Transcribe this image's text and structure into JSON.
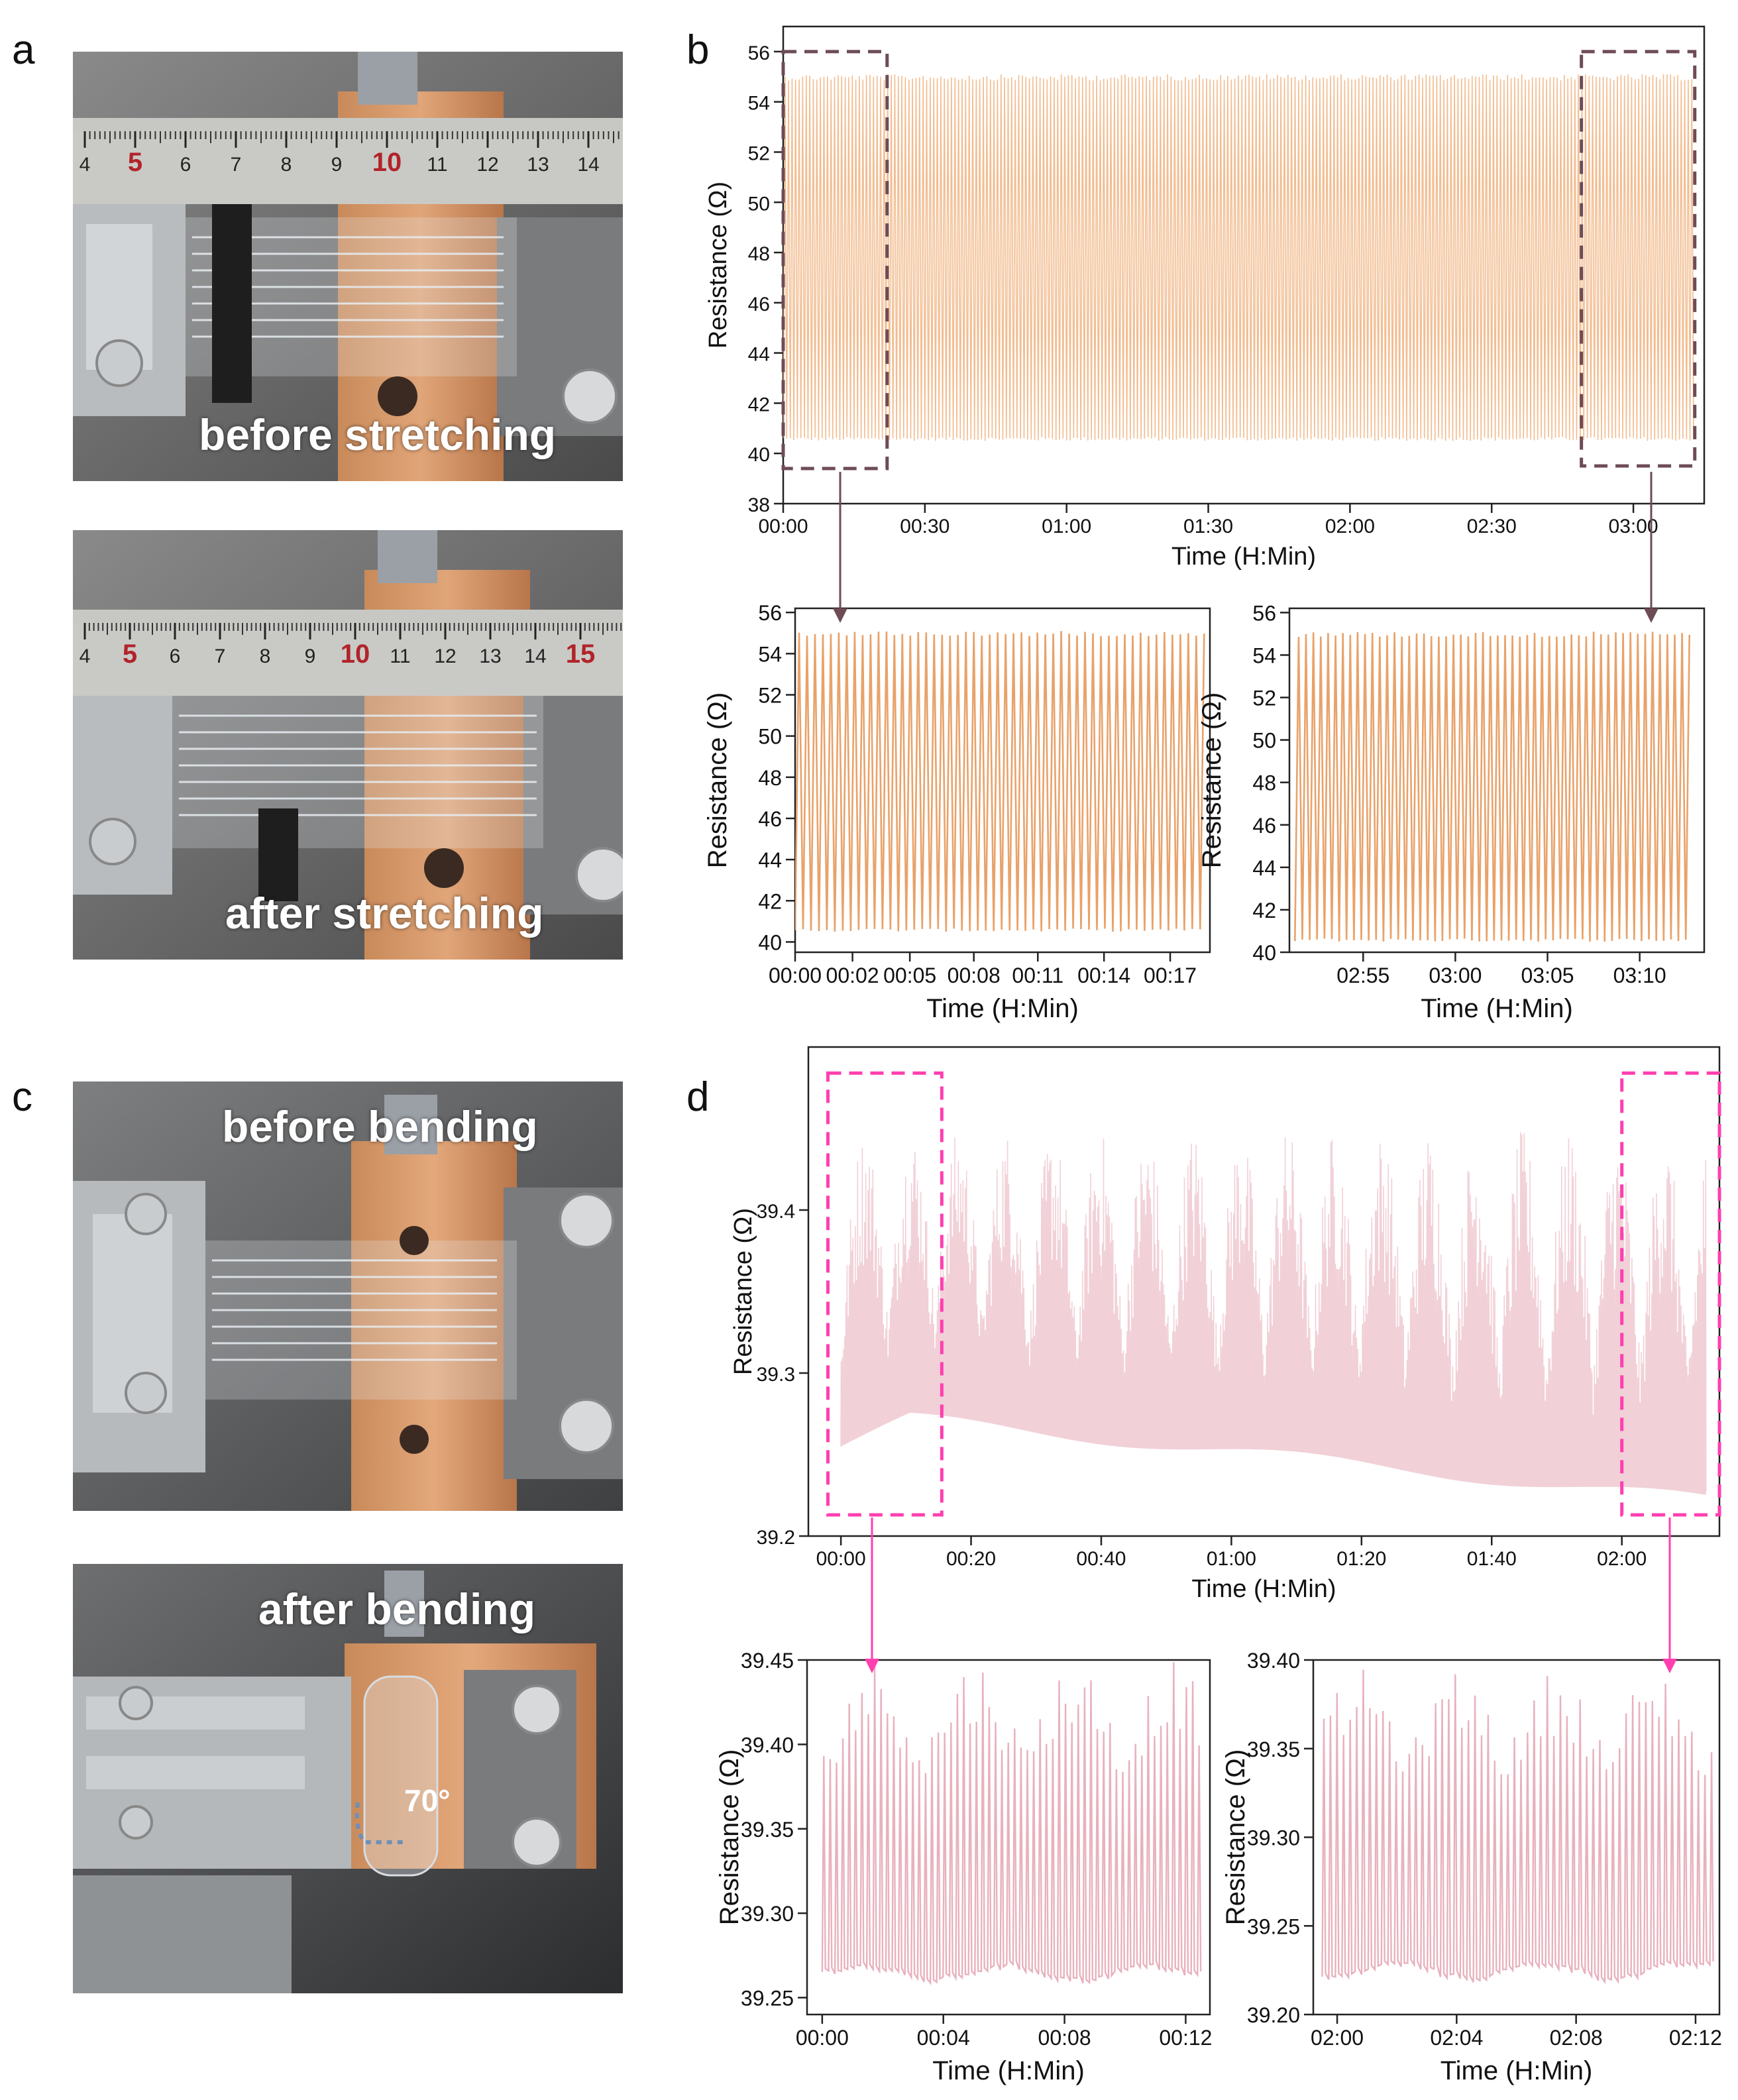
{
  "panel_labels": {
    "a": "a",
    "b": "b",
    "c": "c",
    "d": "d"
  },
  "photos": {
    "before_stretching": {
      "caption": "before stretching"
    },
    "after_stretching": {
      "caption": "after stretching"
    },
    "before_bending": {
      "caption": "before bending"
    },
    "after_bending": {
      "caption": "after bending",
      "angle_label": "70°"
    }
  },
  "ruler": {
    "ticks_top": [
      "4",
      "5",
      "6",
      "7",
      "8",
      "9",
      "10",
      "11",
      "12",
      "13",
      "14"
    ],
    "ticks_bottom": [
      "4",
      "5",
      "6",
      "7",
      "8",
      "9",
      "10",
      "11",
      "12",
      "13",
      "14",
      "15"
    ]
  },
  "colors": {
    "orange": "#f0b27e",
    "orange_dark": "#e8a26a",
    "pink": "#e9b2bd",
    "pink_line": "#e6a9b6",
    "box_b": "#6e4c55",
    "box_d": "#ff3fb0",
    "arrow_b": "#6e4c55",
    "arrow_d": "#ff3fb0"
  },
  "chart_data": [
    {
      "id": "b-main",
      "type": "line",
      "xlabel": "Time (H:Min)",
      "ylabel": "Resistance (Ω)",
      "ylim": [
        38,
        57
      ],
      "yticks": [
        "38",
        "40",
        "42",
        "44",
        "46",
        "48",
        "50",
        "52",
        "54",
        "56"
      ],
      "xlim": [
        0,
        195
      ],
      "xticks": [
        {
          "v": 0,
          "t": "00:00"
        },
        {
          "v": 30,
          "t": "00:30"
        },
        {
          "v": 60,
          "t": "01:00"
        },
        {
          "v": 90,
          "t": "01:30"
        },
        {
          "v": 120,
          "t": "02:00"
        },
        {
          "v": 150,
          "t": "02:30"
        },
        {
          "v": 180,
          "t": "03:00"
        }
      ],
      "series": [
        {
          "min": 40.5,
          "max": 55.1,
          "x_start": 0,
          "x_end": 193,
          "period": 0.75
        }
      ],
      "zoom_boxes": [
        {
          "x": [
            0,
            22
          ],
          "y": [
            39.4,
            56.0
          ]
        },
        {
          "x": [
            169,
            193
          ],
          "y": [
            39.5,
            56.0
          ]
        }
      ]
    },
    {
      "id": "b-left",
      "type": "line",
      "xlabel": "Time (H:Min)",
      "ylabel": "Resistance (Ω)",
      "ylim": [
        39.5,
        56.2
      ],
      "yticks": [
        "40",
        "42",
        "44",
        "46",
        "48",
        "50",
        "52",
        "54",
        "56"
      ],
      "xlim": [
        0,
        18.8
      ],
      "xticks": [
        {
          "v": 0,
          "t": "00:00"
        },
        {
          "v": 2.6,
          "t": "00:02"
        },
        {
          "v": 5.2,
          "t": "00:05"
        },
        {
          "v": 8.1,
          "t": "00:08"
        },
        {
          "v": 11.0,
          "t": "00:11"
        },
        {
          "v": 14.0,
          "t": "00:14"
        },
        {
          "v": 17.0,
          "t": "00:17"
        }
      ],
      "series": [
        {
          "min": 40.5,
          "max": 55.1,
          "x_start": 0,
          "x_end": 18.6,
          "period": 0.36
        }
      ]
    },
    {
      "id": "b-right",
      "type": "line",
      "xlabel": "Time (H:Min)",
      "ylabel": "Resistance (Ω)",
      "ylim": [
        40,
        56.2
      ],
      "yticks": [
        "40",
        "42",
        "44",
        "46",
        "48",
        "50",
        "52",
        "54",
        "56"
      ],
      "xlim": [
        171,
        193.5
      ],
      "xticks": [
        {
          "v": 175,
          "t": "02:55"
        },
        {
          "v": 180,
          "t": "03:00"
        },
        {
          "v": 185,
          "t": "03:05"
        },
        {
          "v": 190,
          "t": "03:10"
        }
      ],
      "series": [
        {
          "min": 40.5,
          "max": 55.1,
          "x_start": 171.3,
          "x_end": 192.8,
          "period": 0.4
        }
      ]
    },
    {
      "id": "d-main",
      "type": "line",
      "xlabel": "Time (H:Min)",
      "ylabel": "Resistance (Ω)",
      "ylim": [
        39.2,
        39.5
      ],
      "yticks": [
        {
          "v": 39.2,
          "t": "39.2"
        },
        {
          "v": 39.3,
          "t": "39.3"
        },
        {
          "v": 39.4,
          "t": "39.4"
        }
      ],
      "xlim": [
        -5,
        135
      ],
      "xticks": [
        {
          "v": 0,
          "t": "00:00"
        },
        {
          "v": 20,
          "t": "00:20"
        },
        {
          "v": 40,
          "t": "00:40"
        },
        {
          "v": 60,
          "t": "01:00"
        },
        {
          "v": 80,
          "t": "01:20"
        },
        {
          "v": 100,
          "t": "01:40"
        },
        {
          "v": 120,
          "t": "02:00"
        }
      ],
      "series": [
        {
          "baseline_start": 39.255,
          "baseline_peak": 39.272,
          "baseline_end": 39.222,
          "peak_max": 39.45,
          "x_start": 0,
          "x_end": 133
        }
      ],
      "zoom_boxes": [
        {
          "x": [
            -2,
            15.5
          ],
          "y": [
            39.213,
            39.484
          ]
        },
        {
          "x": [
            120,
            135
          ],
          "y": [
            39.213,
            39.484
          ]
        }
      ]
    },
    {
      "id": "d-left",
      "type": "line",
      "xlabel": "Time (H:Min)",
      "ylabel": "Resistance (Ω)",
      "ylim": [
        39.24,
        39.45
      ],
      "yticks": [
        {
          "v": 39.25,
          "t": "39.25"
        },
        {
          "v": 39.3,
          "t": "39.30"
        },
        {
          "v": 39.35,
          "t": "39.35"
        },
        {
          "v": 39.4,
          "t": "39.40"
        },
        {
          "v": 39.45,
          "t": "39.45"
        }
      ],
      "xlim": [
        -0.5,
        12.8
      ],
      "xticks": [
        {
          "v": 0,
          "t": "00:00"
        },
        {
          "v": 4,
          "t": "00:04"
        },
        {
          "v": 8,
          "t": "00:08"
        },
        {
          "v": 12,
          "t": "00:12"
        }
      ],
      "series": [
        {
          "baseline": 39.262,
          "peak_min": 39.345,
          "peak_max": 39.45,
          "x_start": 0,
          "x_end": 12.6,
          "period": 0.21
        }
      ]
    },
    {
      "id": "d-right",
      "type": "line",
      "xlabel": "Time (H:Min)",
      "ylabel": "Resistance (Ω)",
      "ylim": [
        39.2,
        39.4
      ],
      "yticks": [
        {
          "v": 39.2,
          "t": "39.20"
        },
        {
          "v": 39.25,
          "t": "39.25"
        },
        {
          "v": 39.3,
          "t": "39.30"
        },
        {
          "v": 39.35,
          "t": "39.35"
        },
        {
          "v": 39.4,
          "t": "39.40"
        }
      ],
      "xlim": [
        119.2,
        132.8
      ],
      "xticks": [
        {
          "v": 120,
          "t": "02:00"
        },
        {
          "v": 124,
          "t": "02:04"
        },
        {
          "v": 128,
          "t": "02:08"
        },
        {
          "v": 132,
          "t": "02:12"
        }
      ],
      "series": [
        {
          "baseline": 39.222,
          "peak_min": 39.3,
          "peak_max": 39.395,
          "x_start": 119.5,
          "x_end": 132.5,
          "period": 0.22
        }
      ]
    }
  ]
}
